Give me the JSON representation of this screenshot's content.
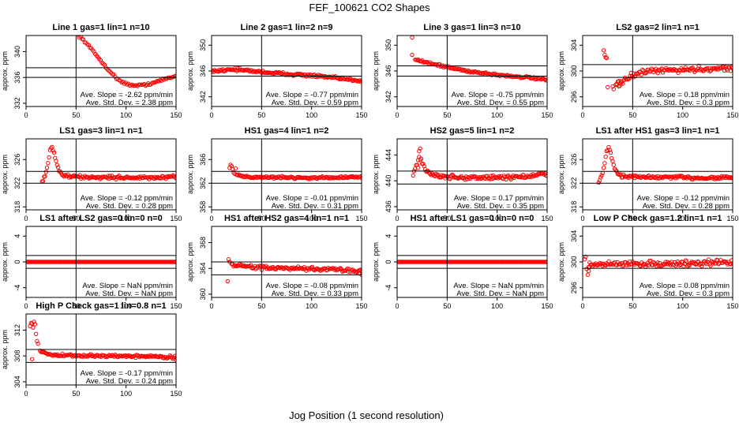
{
  "figure": {
    "title": "FEF_100621  CO2 Shapes",
    "xlabel": "Jog Position (1 second resolution)"
  },
  "colors": {
    "points": "#ff0000",
    "axes": "#000000",
    "background": "#ffffff"
  },
  "chart_data": [
    {
      "type": "scatter",
      "title": "Line 1 gas=1 lin=1 n=10",
      "ylabel": "approx. ppm",
      "xlim": [
        0,
        150
      ],
      "ylim": [
        331.5,
        342.5
      ],
      "yticks": [
        332,
        336,
        340
      ],
      "xticks": [
        0,
        50,
        100,
        150
      ],
      "hlines": [
        337.5,
        336.0
      ],
      "vline": 50,
      "slope_text": "Ave. Slope = -2.62  ppm/min",
      "sd_text": "Ave. Std. Dev. = 2.38  ppm",
      "shape": {
        "kind": "curve",
        "pts": [
          [
            52,
            342.6
          ],
          [
            60,
            341.4
          ],
          [
            70,
            339.5
          ],
          [
            80,
            337.6
          ],
          [
            90,
            335.9
          ],
          [
            100,
            335.0
          ],
          [
            110,
            334.7
          ],
          [
            120,
            334.9
          ],
          [
            130,
            335.3
          ],
          [
            140,
            335.8
          ],
          [
            150,
            336.2
          ]
        ],
        "xmin": 52,
        "xmax": 150,
        "n": 75,
        "noise": 0.12
      }
    },
    {
      "type": "scatter",
      "title": "Line 2 gas=1 lin=2 n=9",
      "ylabel": "approx. ppm",
      "xlim": [
        0,
        150
      ],
      "ylim": [
        340.5,
        351.5
      ],
      "yticks": [
        342,
        346,
        350
      ],
      "xticks": [
        0,
        50,
        100,
        150
      ],
      "hlines": [
        346.8,
        345.2
      ],
      "vline": 50,
      "slope_text": "Ave. Slope = -0.77  ppm/min",
      "sd_text": "Ave. Std. Dev. = 0.59  ppm",
      "shape": {
        "kind": "curve",
        "pts": [
          [
            0,
            346.0
          ],
          [
            10,
            346.1
          ],
          [
            20,
            346.3
          ],
          [
            40,
            346.0
          ],
          [
            70,
            345.6
          ],
          [
            100,
            345.3
          ],
          [
            130,
            344.8
          ],
          [
            150,
            344.5
          ]
        ],
        "xmin": 0,
        "xmax": 150,
        "n": 150,
        "noise": 0.15
      }
    },
    {
      "type": "scatter",
      "title": "Line 3 gas=1 lin=3 n=10",
      "ylabel": "approx. ppm",
      "xlim": [
        0,
        150
      ],
      "ylim": [
        340.5,
        351.5
      ],
      "yticks": [
        342,
        346,
        350
      ],
      "xticks": [
        0,
        50,
        100,
        150
      ],
      "hlines": [
        346.8,
        345.2
      ],
      "vline": 50,
      "slope_text": "Ave. Slope = -0.75  ppm/min",
      "sd_text": "Ave. Std. Dev. = 0.55  ppm",
      "shape": {
        "kind": "curve",
        "pts": [
          [
            18,
            347.8
          ],
          [
            30,
            347.3
          ],
          [
            50,
            346.6
          ],
          [
            70,
            346.0
          ],
          [
            100,
            345.4
          ],
          [
            130,
            345.0
          ],
          [
            150,
            344.6
          ]
        ],
        "xmin": 18,
        "xmax": 150,
        "n": 130,
        "noise": 0.13
      },
      "extra": [
        [
          15,
          351.2
        ],
        [
          15,
          348.5
        ]
      ]
    },
    {
      "type": "scatter",
      "title": "LS2 gas=2 lin=1 n=1",
      "ylabel": "approx. ppm",
      "xlim": [
        0,
        150
      ],
      "ylim": [
        294.5,
        305.5
      ],
      "yticks": [
        296,
        300,
        304
      ],
      "xticks": [
        0,
        50,
        100,
        150
      ],
      "hlines": [
        301.0,
        299.0
      ],
      "vline": 50,
      "slope_text": "Ave. Slope = 0.18  ppm/min",
      "sd_text": "Ave. Std. Dev. = 0.3  ppm",
      "shape": {
        "kind": "curve",
        "pts": [
          [
            35,
            297.8
          ],
          [
            45,
            299.0
          ],
          [
            60,
            299.8
          ],
          [
            80,
            300.1
          ],
          [
            100,
            300.2
          ],
          [
            120,
            300.3
          ],
          [
            150,
            300.5
          ]
        ],
        "xmin": 33,
        "xmax": 150,
        "n": 115,
        "noise": 0.3
      },
      "extra": [
        [
          21,
          303.2
        ],
        [
          22,
          302.5
        ],
        [
          23,
          302.1
        ],
        [
          24,
          302.0
        ],
        [
          25,
          297.5
        ],
        [
          30,
          297.6
        ],
        [
          31,
          297.2
        ],
        [
          34,
          298.0
        ],
        [
          36,
          297.6
        ],
        [
          38,
          298.4
        ]
      ]
    },
    {
      "type": "scatter",
      "title": "LS1 gas=3 lin=1 n=1",
      "ylabel": "approx. ppm",
      "xlim": [
        0,
        150
      ],
      "ylim": [
        317.5,
        329.5
      ],
      "yticks": [
        318,
        322,
        326
      ],
      "xticks": [
        0,
        50,
        100,
        150
      ],
      "hlines": [
        324.0,
        322.0
      ],
      "vline": 50,
      "slope_text": "Ave. Slope = -0.12  ppm/min",
      "sd_text": "Ave. Std. Dev. = 0.28  ppm",
      "shape": {
        "kind": "curve",
        "pts": [
          [
            16,
            322.0
          ],
          [
            18,
            322.9
          ],
          [
            20,
            323.8
          ],
          [
            22,
            325.5
          ],
          [
            24,
            327.6
          ],
          [
            26,
            328.1
          ],
          [
            28,
            327.0
          ],
          [
            30,
            325.6
          ],
          [
            32,
            324.5
          ],
          [
            35,
            323.6
          ],
          [
            40,
            323.2
          ],
          [
            60,
            323.0
          ],
          [
            90,
            323.0
          ],
          [
            120,
            322.9
          ],
          [
            150,
            323.0
          ]
        ],
        "xmin": 16,
        "xmax": 150,
        "n": 135,
        "noise": 0.2
      }
    },
    {
      "type": "scatter",
      "title": "HS1 gas=4 lin=1 n=2",
      "ylabel": "approx. ppm",
      "xlim": [
        0,
        150
      ],
      "ylim": [
        357.5,
        369.5
      ],
      "yticks": [
        358,
        362,
        366
      ],
      "xticks": [
        0,
        50,
        100,
        150
      ],
      "hlines": [
        364.0,
        362.0
      ],
      "vline": 50,
      "slope_text": "Ave. Slope = -0.01  ppm/min",
      "sd_text": "Ave. Std. Dev. = 0.31  ppm",
      "shape": {
        "kind": "curve",
        "pts": [
          [
            25,
            363.4
          ],
          [
            40,
            363.0
          ],
          [
            70,
            363.0
          ],
          [
            100,
            362.9
          ],
          [
            130,
            363.0
          ],
          [
            150,
            363.0
          ]
        ],
        "xmin": 25,
        "xmax": 150,
        "n": 125,
        "noise": 0.13
      },
      "extra": [
        [
          18,
          364.6
        ],
        [
          19,
          365.1
        ],
        [
          20,
          364.9
        ],
        [
          21,
          364.4
        ],
        [
          22,
          363.8
        ],
        [
          23,
          363.6
        ],
        [
          24,
          364.5
        ]
      ]
    },
    {
      "type": "scatter",
      "title": "HS2 gas=5 lin=1 n=2",
      "ylabel": "approx. ppm",
      "xlim": [
        0,
        150
      ],
      "ylim": [
        435.5,
        446.5
      ],
      "yticks": [
        436,
        440,
        444
      ],
      "xticks": [
        0,
        50,
        100,
        150
      ],
      "hlines": [
        441.5,
        439.5
      ],
      "vline": 50,
      "slope_text": "Ave. Slope = 0.17  ppm/min",
      "sd_text": "Ave. Std. Dev. = 0.35  ppm",
      "shape": {
        "kind": "curve",
        "pts": [
          [
            16,
            441.0
          ],
          [
            20,
            442.6
          ],
          [
            22,
            443.8
          ],
          [
            24,
            443.2
          ],
          [
            27,
            442.0
          ],
          [
            30,
            441.6
          ],
          [
            35,
            441.0
          ],
          [
            45,
            440.6
          ],
          [
            70,
            440.5
          ],
          [
            100,
            440.5
          ],
          [
            130,
            440.7
          ],
          [
            150,
            441.0
          ]
        ],
        "xmin": 16,
        "xmax": 150,
        "n": 135,
        "noise": 0.25
      },
      "extra": [
        [
          22,
          444.6
        ],
        [
          23,
          445.0
        ],
        [
          21,
          442.0
        ]
      ]
    },
    {
      "type": "scatter",
      "title": "LS1 after HS1 gas=3 lin=1 n=1",
      "ylabel": "approx. ppm",
      "xlim": [
        0,
        150
      ],
      "ylim": [
        317.5,
        329.5
      ],
      "yticks": [
        318,
        322,
        326
      ],
      "xticks": [
        0,
        50,
        100,
        150
      ],
      "hlines": [
        324.0,
        322.0
      ],
      "vline": 50,
      "slope_text": "Ave. Slope = -0.12  ppm/min",
      "sd_text": "Ave. Std. Dev. = 0.28  ppm",
      "shape": {
        "kind": "curve",
        "pts": [
          [
            16,
            322.0
          ],
          [
            18,
            322.9
          ],
          [
            20,
            323.8
          ],
          [
            22,
            325.5
          ],
          [
            24,
            327.6
          ],
          [
            26,
            328.1
          ],
          [
            28,
            327.0
          ],
          [
            30,
            325.6
          ],
          [
            32,
            324.5
          ],
          [
            35,
            323.6
          ],
          [
            40,
            323.2
          ],
          [
            60,
            323.0
          ],
          [
            90,
            323.0
          ],
          [
            120,
            322.9
          ],
          [
            150,
            323.0
          ]
        ],
        "xmin": 16,
        "xmax": 150,
        "n": 135,
        "noise": 0.2
      }
    },
    {
      "type": "scatter",
      "title": "LS1 after LS2 gas=0 lin=0 n=0",
      "ylabel": "approx. ppm",
      "xlim": [
        0,
        150
      ],
      "ylim": [
        -5.5,
        5.5
      ],
      "yticks": [
        -4,
        0,
        4
      ],
      "xticks": [
        0,
        50,
        100,
        150
      ],
      "hlines": [
        1.0,
        -1.0
      ],
      "vline": 50,
      "slope_text": "Ave. Slope = NaN  ppm/min",
      "sd_text": "Ave. Std. Dev. = NaN  ppm",
      "shape": {
        "kind": "curve",
        "pts": [
          [
            0,
            0
          ],
          [
            150,
            0
          ]
        ],
        "xmin": 0,
        "xmax": 150,
        "n": 151,
        "noise": 0
      }
    },
    {
      "type": "scatter",
      "title": "HS1 after HS2 gas=4 lin=1 n=1",
      "ylabel": "approx. ppm",
      "xlim": [
        0,
        150
      ],
      "ylim": [
        359.5,
        370.5
      ],
      "yticks": [
        360,
        364,
        368
      ],
      "xticks": [
        0,
        50,
        100,
        150
      ],
      "hlines": [
        365.0,
        363.0
      ],
      "vline": 50,
      "slope_text": "Ave. Slope = -0.08  ppm/min",
      "sd_text": "Ave. Std. Dev. = 0.33  ppm",
      "shape": {
        "kind": "curve",
        "pts": [
          [
            20,
            364.6
          ],
          [
            40,
            364.2
          ],
          [
            70,
            364.0
          ],
          [
            100,
            363.9
          ],
          [
            130,
            363.8
          ],
          [
            150,
            363.6
          ]
        ],
        "xmin": 20,
        "xmax": 150,
        "n": 130,
        "noise": 0.2
      },
      "extra": [
        [
          16,
          362.0
        ],
        [
          17,
          365.4
        ],
        [
          18,
          365.0
        ],
        [
          148,
          363.2
        ],
        [
          150,
          363.0
        ]
      ]
    },
    {
      "type": "scatter",
      "title": "HS1 after LS1 gas=0 lin=0 n=0",
      "ylabel": "approx. ppm",
      "xlim": [
        0,
        150
      ],
      "ylim": [
        -5.5,
        5.5
      ],
      "yticks": [
        -4,
        0,
        4
      ],
      "xticks": [
        0,
        50,
        100,
        150
      ],
      "hlines": [
        1.0,
        -1.0
      ],
      "vline": 50,
      "slope_text": "Ave. Slope = NaN  ppm/min",
      "sd_text": "Ave. Std. Dev. = NaN  ppm",
      "shape": {
        "kind": "curve",
        "pts": [
          [
            0,
            0
          ],
          [
            150,
            0
          ]
        ],
        "xmin": 0,
        "xmax": 150,
        "n": 151,
        "noise": 0
      }
    },
    {
      "type": "scatter",
      "title": "Low P Check gas=1.2 lin=1 n=1",
      "ylabel": "approx. ppm",
      "xlim": [
        0,
        150
      ],
      "ylim": [
        294.5,
        305.5
      ],
      "yticks": [
        296,
        300,
        304
      ],
      "xticks": [
        0,
        50,
        100,
        150
      ],
      "hlines": [
        301.0,
        299.0
      ],
      "vline": 50,
      "slope_text": "Ave. Slope = 0.08  ppm/min",
      "sd_text": "Ave. Std. Dev. = 0.3  ppm",
      "shape": {
        "kind": "curve",
        "pts": [
          [
            6,
            299.5
          ],
          [
            15,
            299.6
          ],
          [
            40,
            299.7
          ],
          [
            80,
            299.7
          ],
          [
            120,
            299.8
          ],
          [
            150,
            300.0
          ]
        ],
        "xmin": 6,
        "xmax": 150,
        "n": 145,
        "noise": 0.3
      },
      "extra": [
        [
          2,
          300.4
        ],
        [
          3,
          300.8
        ],
        [
          4,
          298.9
        ],
        [
          5,
          298.0
        ],
        [
          6,
          298.6
        ],
        [
          7,
          299.2
        ]
      ]
    },
    {
      "type": "scatter",
      "title": "High P Check gas=1 lin=0.8 n=1",
      "ylabel": "approx. ppm",
      "xlim": [
        0,
        150
      ],
      "ylim": [
        303.5,
        314.5
      ],
      "yticks": [
        304,
        308,
        312
      ],
      "xticks": [
        0,
        50,
        100,
        150
      ],
      "hlines": [
        309.0,
        307.0
      ],
      "vline": 50,
      "slope_text": "Ave. Slope = -0.17  ppm/min",
      "sd_text": "Ave. Std. Dev. = 0.24  ppm",
      "shape": {
        "kind": "curve",
        "pts": [
          [
            14,
            308.8
          ],
          [
            20,
            308.4
          ],
          [
            30,
            308.1
          ],
          [
            60,
            308.0
          ],
          [
            100,
            308.0
          ],
          [
            130,
            307.9
          ],
          [
            150,
            307.8
          ]
        ],
        "xmin": 14,
        "xmax": 150,
        "n": 135,
        "noise": 0.15
      },
      "extra": [
        [
          4,
          312.6
        ],
        [
          5,
          313.1
        ],
        [
          6,
          313.0
        ],
        [
          7,
          312.4
        ],
        [
          8,
          313.3
        ],
        [
          9,
          312.9
        ],
        [
          10,
          311.4
        ],
        [
          11,
          310.3
        ],
        [
          12,
          309.9
        ],
        [
          6,
          307.5
        ],
        [
          150,
          307.4
        ]
      ]
    }
  ]
}
